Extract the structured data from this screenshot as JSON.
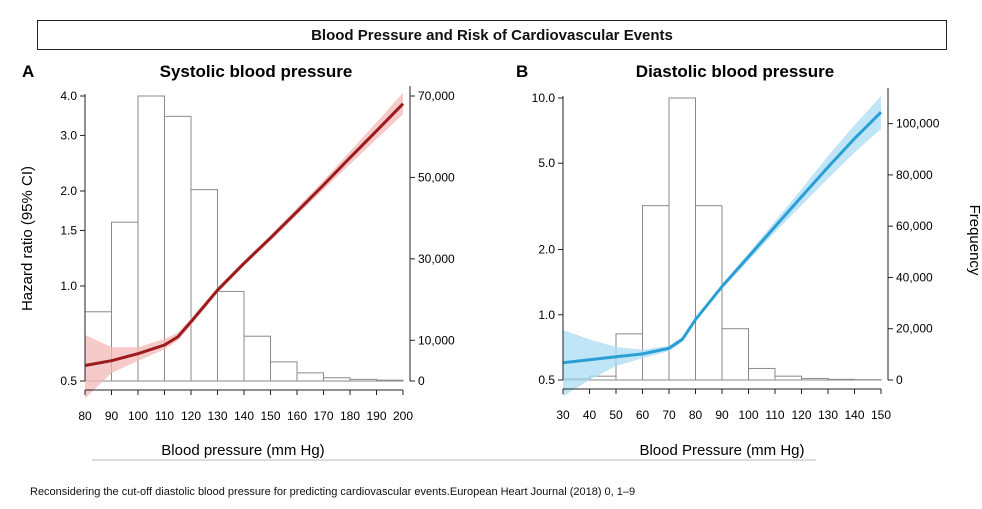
{
  "header": {
    "title": "Blood Pressure and Risk of Cardiovascular Events"
  },
  "caption": "Reconsidering the cut-off diastolic blood pressure for predicting cardiovascular events.European Heart Journal (2018) 0, 1–9",
  "chart_data": [
    {
      "type": "line",
      "panel_letter": "A",
      "title": "Systolic blood pressure",
      "xlabel": "Blood pressure (mm Hg)",
      "ylabel": "Hazard ratio (95% CI)",
      "y2label": "",
      "xlim": [
        80,
        200
      ],
      "xticks": [
        80,
        90,
        100,
        110,
        120,
        130,
        140,
        150,
        160,
        170,
        180,
        190,
        200
      ],
      "ylim": [
        0.5,
        4.0
      ],
      "yscale": "log",
      "yticks": [
        0.5,
        1.0,
        1.5,
        2.0,
        3.0,
        4.0
      ],
      "ytick_labels": [
        "0.5",
        "1.0",
        "1.5",
        "2.0",
        "3.0",
        "4.0"
      ],
      "y2lim": [
        0,
        70000
      ],
      "y2ticks": [
        0,
        10000,
        30000,
        50000,
        70000
      ],
      "y2tick_labels": [
        "0",
        "10,000",
        "30,000",
        "50,000",
        "70,000"
      ],
      "line_color": "#9b1b1f",
      "band_color": "#f2b8b5",
      "hazard_ratio": {
        "x": [
          80,
          90,
          100,
          110,
          115,
          120,
          130,
          140,
          150,
          160,
          170,
          180,
          190,
          200
        ],
        "y": [
          0.56,
          0.58,
          0.61,
          0.65,
          0.69,
          0.77,
          0.97,
          1.18,
          1.42,
          1.72,
          2.09,
          2.55,
          3.1,
          3.78
        ],
        "lower": [
          0.44,
          0.53,
          0.58,
          0.63,
          0.67,
          0.75,
          0.95,
          1.16,
          1.39,
          1.68,
          2.02,
          2.43,
          2.92,
          3.5
        ],
        "upper": [
          0.7,
          0.64,
          0.64,
          0.68,
          0.71,
          0.79,
          0.99,
          1.2,
          1.45,
          1.77,
          2.16,
          2.67,
          3.3,
          4.1
        ]
      },
      "histogram": {
        "bin_edges": [
          80,
          90,
          100,
          110,
          120,
          130,
          140,
          150,
          160,
          170,
          180,
          190,
          200
        ],
        "counts": [
          17000,
          39000,
          70000,
          65000,
          47000,
          22000,
          11000,
          4700,
          2000,
          800,
          400,
          200
        ]
      }
    },
    {
      "type": "line",
      "panel_letter": "B",
      "title": "Diastolic blood pressure",
      "xlabel": "Blood Pressure (mm Hg)",
      "ylabel": "",
      "y2label": "Frequency",
      "xlim": [
        30,
        150
      ],
      "xticks": [
        30,
        40,
        50,
        60,
        70,
        80,
        90,
        100,
        110,
        120,
        130,
        140,
        150
      ],
      "ylim": [
        0.5,
        10.0
      ],
      "yscale": "log",
      "yticks": [
        0.5,
        1.0,
        2.0,
        5.0,
        10.0
      ],
      "ytick_labels": [
        "0.5",
        "1.0",
        "2.0",
        "5.0",
        "10.0"
      ],
      "y2lim": [
        0,
        110000
      ],
      "y2ticks": [
        0,
        20000,
        40000,
        60000,
        80000,
        100000
      ],
      "y2tick_labels": [
        "0",
        "20,000",
        "40,000",
        "60,000",
        "80,000",
        "100,000"
      ],
      "line_color": "#2a9fd6",
      "band_color": "#a9dcf3",
      "hazard_ratio": {
        "x": [
          30,
          40,
          50,
          60,
          70,
          75,
          80,
          90,
          100,
          110,
          120,
          130,
          140,
          150
        ],
        "y": [
          0.6,
          0.62,
          0.64,
          0.66,
          0.7,
          0.77,
          0.95,
          1.35,
          1.85,
          2.55,
          3.5,
          4.8,
          6.5,
          8.6
        ],
        "lower": [
          0.42,
          0.5,
          0.58,
          0.63,
          0.68,
          0.75,
          0.93,
          1.32,
          1.78,
          2.4,
          3.2,
          4.25,
          5.6,
          7.2
        ],
        "upper": [
          0.85,
          0.77,
          0.71,
          0.69,
          0.72,
          0.79,
          0.97,
          1.38,
          1.92,
          2.7,
          3.8,
          5.4,
          7.5,
          10.2
        ]
      },
      "histogram": {
        "bin_edges": [
          30,
          40,
          50,
          60,
          70,
          80,
          90,
          100,
          110,
          120,
          130,
          140,
          150
        ],
        "counts": [
          500,
          1500,
          18000,
          68000,
          110000,
          68000,
          20000,
          4500,
          1500,
          600,
          250,
          100
        ]
      }
    }
  ]
}
